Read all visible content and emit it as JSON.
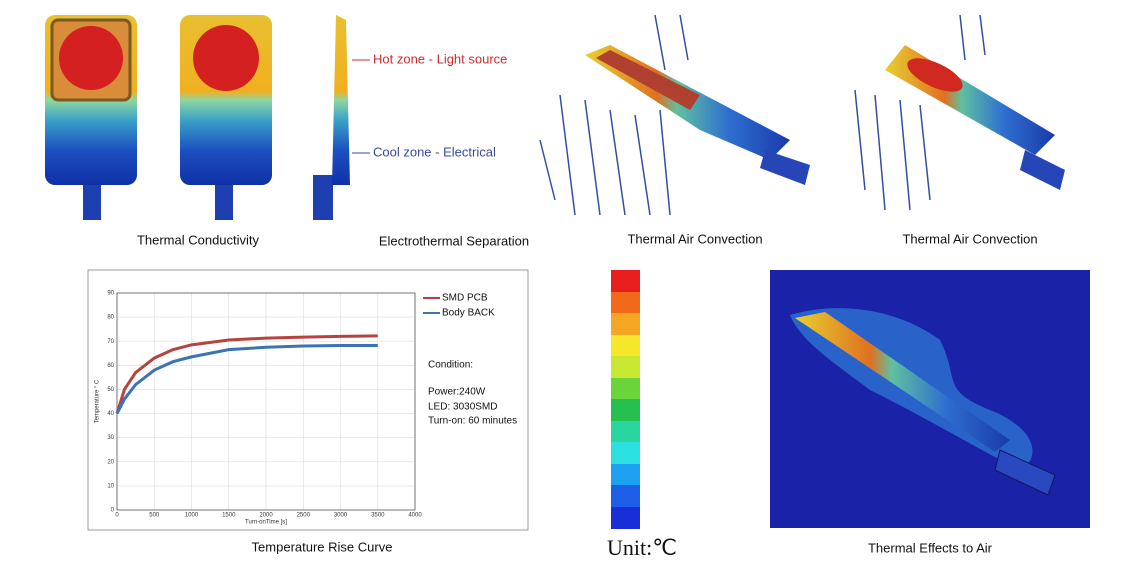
{
  "top_panels": [
    {
      "caption": "Thermal Conductivity"
    },
    {
      "caption": "Electrothermal Separation"
    },
    {
      "caption": "Thermal Air Convection"
    },
    {
      "caption": "Thermal Air Convection"
    }
  ],
  "annotations": {
    "hot": "Hot zone - Light source",
    "cool": "Cool zone - Electrical"
  },
  "chart_data": {
    "type": "line",
    "x": [
      0,
      100,
      250,
      500,
      750,
      1000,
      1500,
      2000,
      2500,
      3000,
      3500
    ],
    "series": [
      {
        "name": "SMD PCB",
        "color": "#b5443f",
        "values": [
          40,
          50,
          57,
          63,
          66.5,
          68.5,
          70.5,
          71.3,
          71.7,
          72,
          72.2
        ]
      },
      {
        "name": "Body BACK",
        "color": "#3a74b5",
        "values": [
          40,
          46,
          52,
          58,
          61.5,
          63.5,
          66.5,
          67.5,
          68,
          68.2,
          68.2
        ]
      }
    ],
    "xlim": [
      0,
      4000
    ],
    "xticks": [
      0,
      500,
      1000,
      1500,
      2000,
      2500,
      3000,
      3500,
      4000
    ],
    "ylim": [
      0,
      90
    ],
    "yticks": [
      0,
      10,
      20,
      30,
      40,
      50,
      60,
      70,
      80,
      90
    ],
    "xlabel": "Turn-onTime [s]",
    "ylabel": "Temperature ° C",
    "grid": true,
    "notes": [
      "Condition:",
      "Power:240W",
      "LED: 3030SMD",
      "Turn-on: 60 minutes"
    ]
  },
  "chart_caption": "Temperature Rise Curve",
  "scale_unit": "Unit:℃",
  "air_caption": "Thermal Effects to Air"
}
